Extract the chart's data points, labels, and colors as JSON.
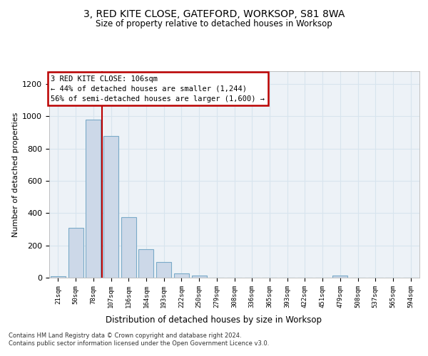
{
  "title1": "3, RED KITE CLOSE, GATEFORD, WORKSOP, S81 8WA",
  "title2": "Size of property relative to detached houses in Worksop",
  "xlabel": "Distribution of detached houses by size in Worksop",
  "ylabel": "Number of detached properties",
  "bar_fill_color": "#ccd8e8",
  "bar_edge_color": "#7aaac8",
  "vline_color": "#bb0000",
  "annotation_border_color": "#bb0000",
  "grid_color": "#d8e4ee",
  "bg_color": "#edf2f7",
  "footnote": "Contains HM Land Registry data © Crown copyright and database right 2024.\nContains public sector information licensed under the Open Government Licence v3.0.",
  "annotation_line1": "3 RED KITE CLOSE: 106sqm",
  "annotation_line2": "← 44% of detached houses are smaller (1,244)",
  "annotation_line3": "56% of semi-detached houses are larger (1,600) →",
  "bin_labels": [
    "21sqm",
    "50sqm",
    "78sqm",
    "107sqm",
    "136sqm",
    "164sqm",
    "193sqm",
    "222sqm",
    "250sqm",
    "279sqm",
    "308sqm",
    "336sqm",
    "365sqm",
    "393sqm",
    "422sqm",
    "451sqm",
    "479sqm",
    "508sqm",
    "537sqm",
    "565sqm",
    "594sqm"
  ],
  "values": [
    10,
    310,
    980,
    880,
    375,
    175,
    95,
    28,
    12,
    0,
    0,
    0,
    0,
    0,
    0,
    0,
    15,
    0,
    0,
    0,
    0
  ],
  "vline_x_idx": 2.5,
  "ylim": [
    0,
    1280
  ],
  "yticks": [
    0,
    200,
    400,
    600,
    800,
    1000,
    1200
  ]
}
